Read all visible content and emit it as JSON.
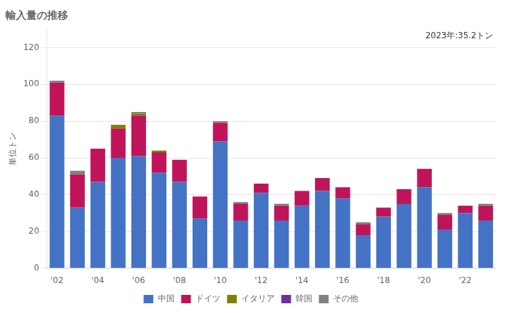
{
  "chart_data": {
    "type": "bar",
    "title": "輸入量の推移",
    "ylabel": "単位トン",
    "annotation": "2023年:35.2トン",
    "categories": [
      "'02",
      null,
      "'04",
      null,
      "'06",
      null,
      "'08",
      null,
      "'10",
      null,
      "'12",
      null,
      "'14",
      null,
      "'16",
      null,
      "'18",
      null,
      "'20",
      null,
      "'22",
      null
    ],
    "series": [
      {
        "name": "中国",
        "color": "#4472C4",
        "values": [
          83,
          33,
          47,
          60,
          61,
          52,
          47,
          27,
          69,
          26,
          41,
          26,
          34,
          42,
          38,
          18,
          28,
          35,
          44,
          21,
          30,
          26
        ]
      },
      {
        "name": "ドイツ",
        "color": "#C0145A",
        "values": [
          18,
          18,
          18,
          16,
          22,
          11,
          12,
          12,
          10,
          9,
          5,
          8,
          8,
          7,
          6,
          6,
          5,
          8,
          10,
          8,
          4,
          8
        ]
      },
      {
        "name": "イタリア",
        "color": "#7F7F00",
        "values": [
          0,
          0,
          0,
          2,
          1,
          1,
          0,
          0,
          0,
          0,
          0,
          0,
          0,
          0,
          0,
          0,
          0,
          0,
          0,
          0,
          0,
          0
        ]
      },
      {
        "name": "韓国",
        "color": "#7030A0",
        "values": [
          0,
          0,
          0,
          0,
          0,
          0,
          0,
          0,
          0,
          0,
          0,
          0,
          0,
          0,
          0,
          0,
          0,
          0,
          0,
          0,
          0,
          0
        ]
      },
      {
        "name": "その他",
        "color": "#808080",
        "values": [
          1,
          2,
          0,
          0,
          1,
          0,
          0,
          0,
          1,
          1,
          0,
          1,
          0,
          0,
          0,
          1,
          0,
          0,
          0,
          1,
          0,
          1
        ]
      }
    ],
    "stacked": true,
    "ylim": [
      0,
      130
    ],
    "yticks": [
      0,
      20,
      40,
      60,
      80,
      100,
      120
    ],
    "grid": true,
    "legend": "bottom"
  }
}
